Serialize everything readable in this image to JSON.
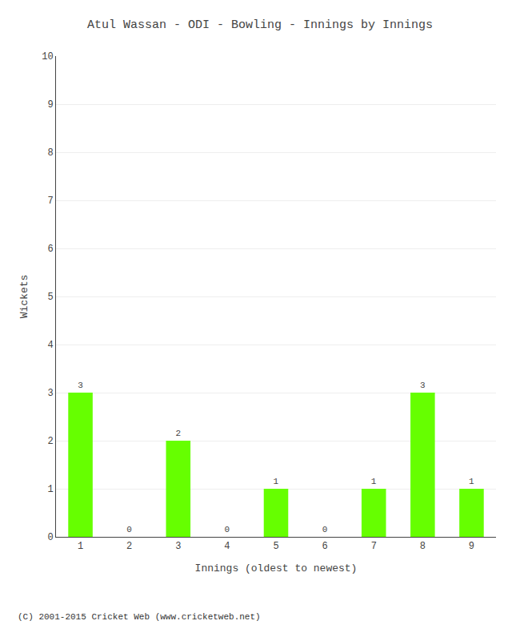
{
  "chart_data": {
    "type": "bar",
    "title": "Atul Wassan - ODI - Bowling - Innings by Innings",
    "xlabel": "Innings (oldest to newest)",
    "ylabel": "Wickets",
    "categories": [
      "1",
      "2",
      "3",
      "4",
      "5",
      "6",
      "7",
      "8",
      "9"
    ],
    "values": [
      3,
      0,
      2,
      0,
      1,
      0,
      1,
      3,
      1
    ],
    "color": "#66ff00",
    "ylim": [
      0,
      10
    ],
    "yticks": [
      0,
      1,
      2,
      3,
      4,
      5,
      6,
      7,
      8,
      9,
      10
    ],
    "grid": true,
    "data_labels": true,
    "annotations": [
      "(C) 2001-2015 Cricket Web (www.cricketweb.net)"
    ]
  }
}
